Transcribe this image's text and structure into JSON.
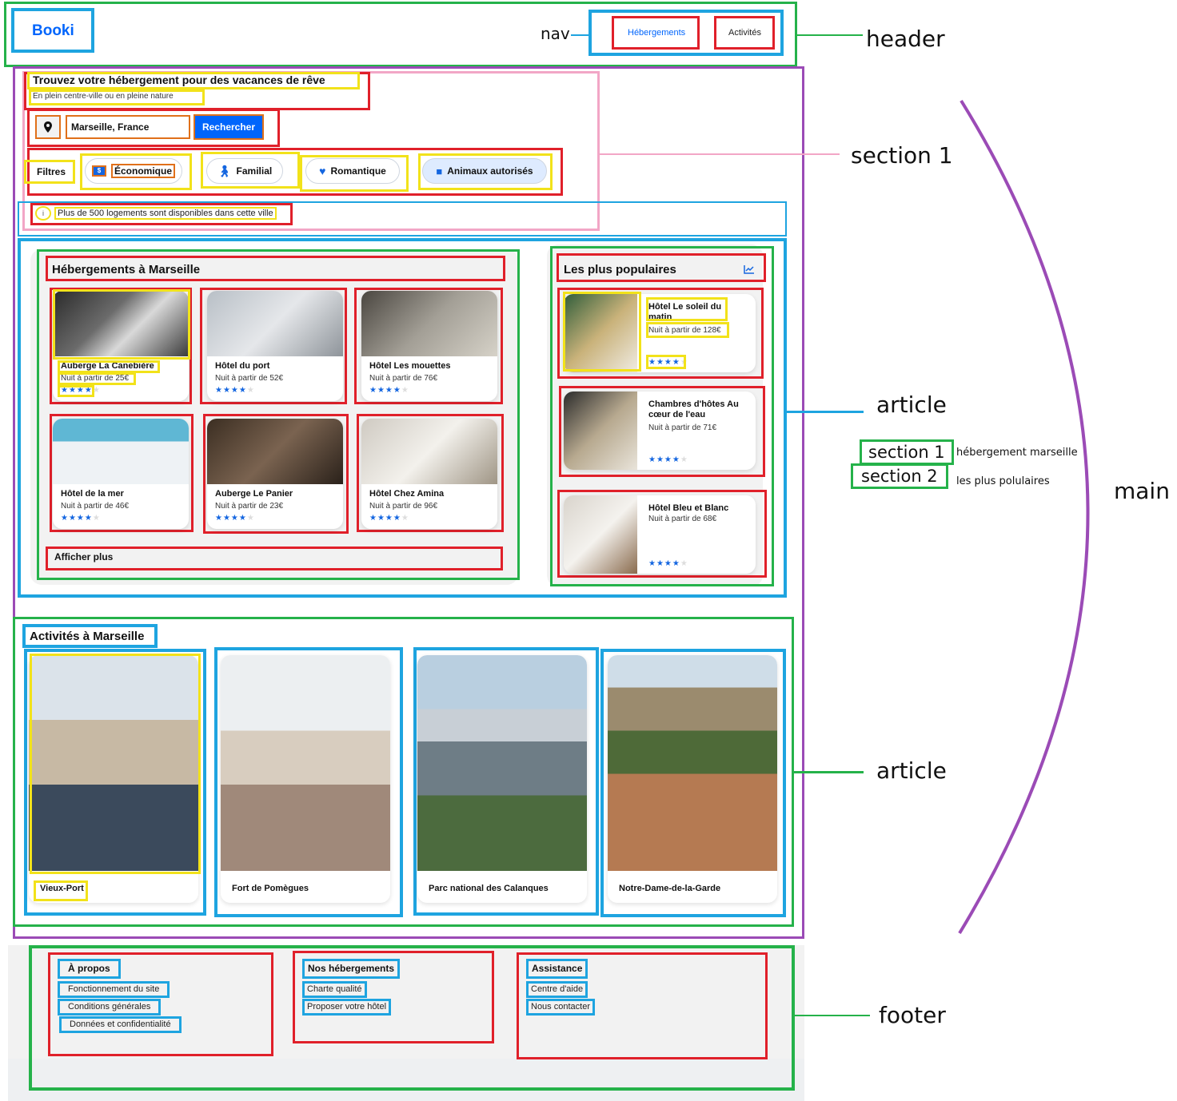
{
  "header": {
    "logo": "Booki",
    "nav_label": "nav",
    "nav": [
      "Hébergements",
      "Activités"
    ],
    "annot": "header"
  },
  "hero": {
    "title": "Trouvez votre hébergement pour des vacances de rêve",
    "subtitle": "En plein centre-ville ou en pleine nature",
    "search_value": "Marseille, France",
    "search_button": "Rechercher"
  },
  "filters": {
    "label": "Filtres",
    "items": [
      "Économique",
      "Familial",
      "Romantique",
      "Animaux autorisés"
    ]
  },
  "info": "Plus de 500 logements sont disponibles dans cette ville",
  "lodgings": {
    "title": "Hébergements à Marseille",
    "more": "Afficher plus",
    "items": [
      {
        "name": "Auberge La Canebière",
        "price": "Nuit à partir de 25€",
        "rating": 4
      },
      {
        "name": "Hôtel du port",
        "price": "Nuit à partir de 52€",
        "rating": 4
      },
      {
        "name": "Hôtel Les mouettes",
        "price": "Nuit à partir de 76€",
        "rating": 4
      },
      {
        "name": "Hôtel de la mer",
        "price": "Nuit à partir de 46€",
        "rating": 4
      },
      {
        "name": "Auberge Le Panier",
        "price": "Nuit à partir de 23€",
        "rating": 4
      },
      {
        "name": "Hôtel Chez Amina",
        "price": "Nuit à partir de 96€",
        "rating": 4
      }
    ]
  },
  "popular": {
    "title": "Les plus populaires",
    "items": [
      {
        "name": "Hôtel Le soleil du matin",
        "price": "Nuit à partir de 128€",
        "rating": 4
      },
      {
        "name": "Chambres d'hôtes Au cœur de l'eau",
        "price": "Nuit à partir de 71€",
        "rating": 4
      },
      {
        "name": "Hôtel Bleu et Blanc",
        "price": "Nuit à partir de 68€",
        "rating": 4
      }
    ]
  },
  "activities": {
    "title": "Activités à Marseille",
    "items": [
      "Vieux-Port",
      "Fort de Pomègues",
      "Parc national des Calanques",
      "Notre-Dame-de-la-Garde"
    ]
  },
  "footer": {
    "cols": [
      {
        "title": "À propos",
        "links": [
          "Fonctionnement du site",
          "Conditions générales",
          "Données et confidentialité"
        ]
      },
      {
        "title": "Nos hébergements",
        "links": [
          "Charte qualité",
          "Proposer votre hôtel"
        ]
      },
      {
        "title": "Assistance",
        "links": [
          "Centre d'aide",
          "Nous contacter"
        ]
      }
    ]
  },
  "annotations": {
    "header": "header",
    "section1": "section 1",
    "article1": "article",
    "section_1_tag": "section 1",
    "section_1_desc": "hébergement marseille",
    "section_2_tag": "section 2",
    "section_2_desc": "les plus polulaires",
    "main": "main",
    "article2": "article",
    "footer": "footer"
  },
  "colors": {
    "accent": "#0065fc",
    "red": "#e0202a",
    "blue": "#1ea4e0",
    "yellow": "#f2e21a",
    "green": "#25b24a",
    "purple": "#9b4bb6",
    "pink": "#f2a6c6"
  }
}
